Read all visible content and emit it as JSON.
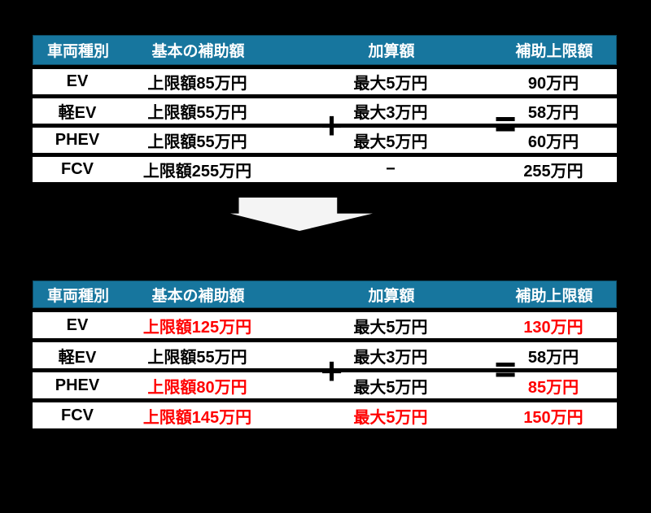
{
  "colors": {
    "background": "#000000",
    "header_bg": "#17769E",
    "header_text": "#FFFFFF",
    "row_bg": "#FFFFFF",
    "row_text": "#000000",
    "highlight": "#FF0000",
    "arrow": "#F4F4F4"
  },
  "columns": [
    "車両種別",
    "基本の補助額",
    "加算額",
    "補助上限額"
  ],
  "operators": {
    "plus": "+",
    "equals": "="
  },
  "table_before": {
    "rows": [
      {
        "type": "EV",
        "base": "上限額85万円",
        "addition": "最大5万円",
        "limit": "90万円"
      },
      {
        "type": "軽EV",
        "base": "上限額55万円",
        "addition": "最大3万円",
        "limit": "58万円"
      },
      {
        "type": "PHEV",
        "base": "上限額55万円",
        "addition": "最大5万円",
        "limit": "60万円"
      },
      {
        "type": "FCV",
        "base": "上限額255万円",
        "addition": "−",
        "limit": "255万円"
      }
    ]
  },
  "table_after": {
    "rows": [
      {
        "type": "EV",
        "base": "上限額125万円",
        "base_color": "red",
        "addition": "最大5万円",
        "limit": "130万円",
        "limit_color": "red"
      },
      {
        "type": "軽EV",
        "base": "上限額55万円",
        "addition": "最大3万円",
        "limit": "58万円"
      },
      {
        "type": "PHEV",
        "base": "上限額80万円",
        "base_color": "red",
        "addition": "最大5万円",
        "limit": "85万円",
        "limit_color": "red"
      },
      {
        "type": "FCV",
        "base": "上限額145万円",
        "base_color": "red",
        "addition": "最大5万円",
        "addition_color": "red",
        "limit": "150万円",
        "limit_color": "red"
      }
    ]
  }
}
